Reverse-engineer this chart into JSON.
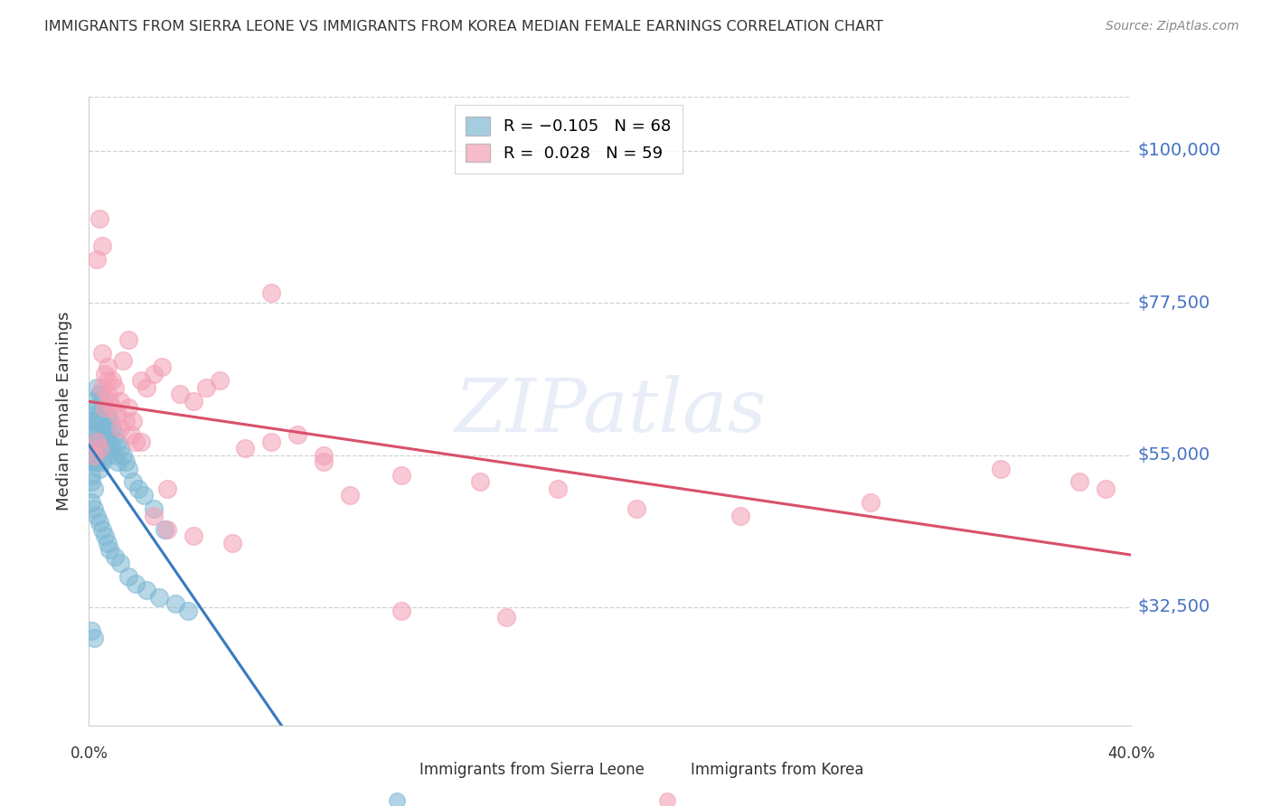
{
  "title": "IMMIGRANTS FROM SIERRA LEONE VS IMMIGRANTS FROM KOREA MEDIAN FEMALE EARNINGS CORRELATION CHART",
  "source": "Source: ZipAtlas.com",
  "ylabel": "Median Female Earnings",
  "ytick_labels": [
    "$32,500",
    "$55,000",
    "$77,500",
    "$100,000"
  ],
  "ytick_values": [
    32500,
    55000,
    77500,
    100000
  ],
  "ymin": 15000,
  "ymax": 108000,
  "xmin": 0.0,
  "xmax": 0.4,
  "sierra_leone_color": "#7eb8d4",
  "korea_color": "#f4a0b5",
  "sierra_leone_line_color": "#3a7abf",
  "korea_line_color": "#d9506a",
  "sierra_leone_dash_color": "#7eb8d4",
  "watermark_color": "#4472c4",
  "watermark_alpha": 0.12,
  "grid_color": "#cccccc",
  "background_color": "#ffffff",
  "title_color": "#333333",
  "source_color": "#888888",
  "ytick_color": "#4472c4",
  "label_color": "#333333",
  "sl_x": [
    0.001,
    0.001,
    0.001,
    0.001,
    0.001,
    0.001,
    0.001,
    0.002,
    0.002,
    0.002,
    0.002,
    0.002,
    0.002,
    0.003,
    0.003,
    0.003,
    0.003,
    0.003,
    0.004,
    0.004,
    0.004,
    0.004,
    0.004,
    0.005,
    0.005,
    0.005,
    0.005,
    0.006,
    0.006,
    0.006,
    0.007,
    0.007,
    0.007,
    0.008,
    0.008,
    0.009,
    0.009,
    0.01,
    0.01,
    0.011,
    0.011,
    0.012,
    0.013,
    0.014,
    0.015,
    0.017,
    0.019,
    0.021,
    0.025,
    0.029,
    0.001,
    0.002,
    0.003,
    0.004,
    0.005,
    0.006,
    0.007,
    0.008,
    0.01,
    0.012,
    0.015,
    0.018,
    0.022,
    0.027,
    0.033,
    0.038,
    0.001,
    0.002
  ],
  "sl_y": [
    52000,
    55000,
    54000,
    51000,
    60000,
    58000,
    56000,
    63000,
    61000,
    59000,
    57000,
    54000,
    50000,
    65000,
    62000,
    60000,
    57000,
    54000,
    64000,
    61000,
    59000,
    56000,
    53000,
    63000,
    60000,
    57000,
    54000,
    62000,
    59000,
    56000,
    61000,
    58000,
    55000,
    60000,
    57000,
    59000,
    56000,
    58000,
    55000,
    57000,
    54000,
    56000,
    55000,
    54000,
    53000,
    51000,
    50000,
    49000,
    47000,
    44000,
    48000,
    47000,
    46000,
    45000,
    44000,
    43000,
    42000,
    41000,
    40000,
    39000,
    37000,
    36000,
    35000,
    34000,
    33000,
    32000,
    29000,
    28000
  ],
  "k_x": [
    0.002,
    0.003,
    0.004,
    0.004,
    0.005,
    0.005,
    0.006,
    0.006,
    0.007,
    0.007,
    0.008,
    0.009,
    0.01,
    0.011,
    0.012,
    0.013,
    0.014,
    0.015,
    0.016,
    0.017,
    0.018,
    0.02,
    0.022,
    0.025,
    0.028,
    0.03,
    0.035,
    0.04,
    0.045,
    0.05,
    0.06,
    0.07,
    0.08,
    0.09,
    0.1,
    0.12,
    0.15,
    0.18,
    0.21,
    0.25,
    0.3,
    0.35,
    0.003,
    0.005,
    0.007,
    0.009,
    0.012,
    0.015,
    0.02,
    0.025,
    0.03,
    0.04,
    0.055,
    0.07,
    0.09,
    0.12,
    0.16,
    0.38,
    0.39
  ],
  "k_y": [
    55000,
    57000,
    56000,
    90000,
    86000,
    65000,
    67000,
    62000,
    66000,
    64000,
    63000,
    62000,
    65000,
    61000,
    59000,
    69000,
    60000,
    72000,
    58000,
    60000,
    57000,
    66000,
    65000,
    67000,
    68000,
    50000,
    64000,
    63000,
    65000,
    66000,
    56000,
    57000,
    58000,
    54000,
    49000,
    52000,
    51000,
    50000,
    47000,
    46000,
    48000,
    53000,
    84000,
    70000,
    68000,
    66000,
    63000,
    62000,
    57000,
    46000,
    44000,
    43000,
    42000,
    79000,
    55000,
    32000,
    31000,
    51000,
    50000
  ]
}
